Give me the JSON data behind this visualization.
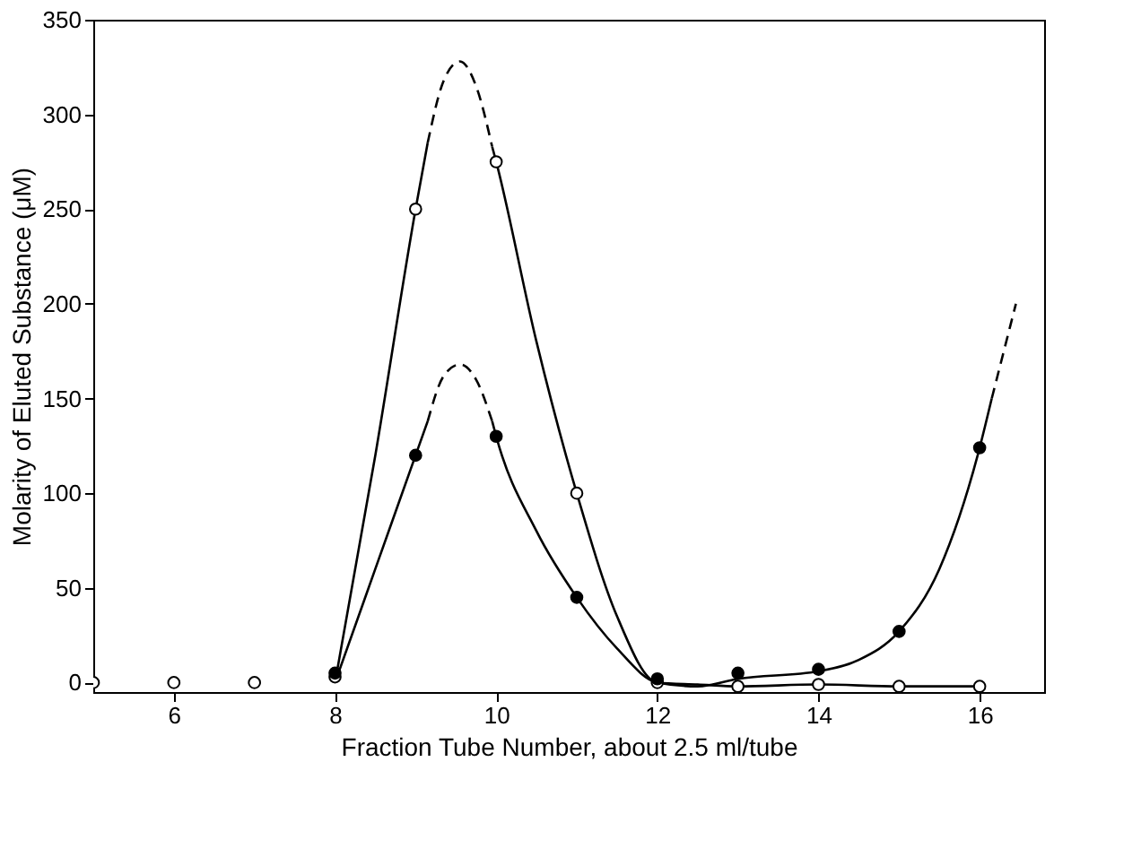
{
  "chart_data": {
    "type": "scatter",
    "xlabel": "Fraction Tube Number, about 2.5 ml/tube",
    "ylabel": "Molarity of Eluted Substance (μM)",
    "xlim": [
      5,
      16.8
    ],
    "ylim": [
      -5,
      350
    ],
    "xticks": [
      6,
      8,
      10,
      12,
      14,
      16
    ],
    "yticks": [
      0,
      50,
      100,
      150,
      200,
      250,
      300,
      350
    ],
    "grid": false,
    "series": [
      {
        "type": "line",
        "color": "#000000",
        "line_style": "solid",
        "marker": "none",
        "x": [
          8,
          8.5,
          9,
          9.15
        ],
        "values": [
          0,
          120,
          250,
          285
        ]
      },
      {
        "type": "line",
        "color": "#000000",
        "line_style": "dashed",
        "marker": "none",
        "x": [
          9.15,
          9.35,
          9.55,
          9.75,
          9.95
        ],
        "values": [
          285,
          318,
          328,
          315,
          283
        ]
      },
      {
        "type": "line",
        "color": "#000000",
        "line_style": "solid",
        "marker": "none",
        "x": [
          9.95,
          10,
          10.5,
          11,
          11.5,
          12,
          12.5,
          13,
          14,
          15,
          16
        ],
        "values": [
          283,
          275,
          180,
          100,
          35,
          0,
          -1,
          -2,
          -1,
          -2,
          -2
        ]
      },
      {
        "type": "line",
        "color": "#000000",
        "line_style": "solid",
        "marker": "none",
        "x": [
          8,
          8.5,
          9,
          9.15
        ],
        "values": [
          0,
          60,
          120,
          138
        ]
      },
      {
        "type": "line",
        "color": "#000000",
        "line_style": "dashed",
        "marker": "none",
        "x": [
          9.15,
          9.35,
          9.55,
          9.75,
          9.95
        ],
        "values": [
          138,
          162,
          168,
          160,
          138
        ]
      },
      {
        "type": "line",
        "color": "#000000",
        "line_style": "solid",
        "marker": "none",
        "x": [
          9.95,
          10,
          10.5,
          11,
          11.5,
          12,
          12.5,
          13,
          14,
          14.5,
          15,
          15.5,
          16,
          16.15
        ],
        "values": [
          138,
          130,
          80,
          45,
          18,
          0,
          -2,
          2,
          6,
          12,
          27,
          60,
          124,
          150
        ]
      },
      {
        "type": "line",
        "color": "#000000",
        "line_style": "dashed",
        "marker": "none",
        "x": [
          16.15,
          16.3,
          16.45
        ],
        "values": [
          150,
          175,
          200
        ]
      },
      {
        "color": "#ffffff",
        "marker": "circle",
        "x": [
          5,
          6,
          7,
          8,
          9,
          10,
          11,
          12,
          13,
          14,
          15,
          16
        ],
        "values": [
          0,
          0,
          0,
          3,
          250,
          275,
          100,
          0,
          -2,
          -1,
          -2,
          -2
        ]
      },
      {
        "color": "#000000",
        "marker": "circle",
        "x": [
          8,
          9,
          10,
          11,
          12,
          13,
          14,
          15,
          16
        ],
        "values": [
          5,
          120,
          130,
          45,
          2,
          5,
          7,
          27,
          124
        ]
      }
    ]
  }
}
